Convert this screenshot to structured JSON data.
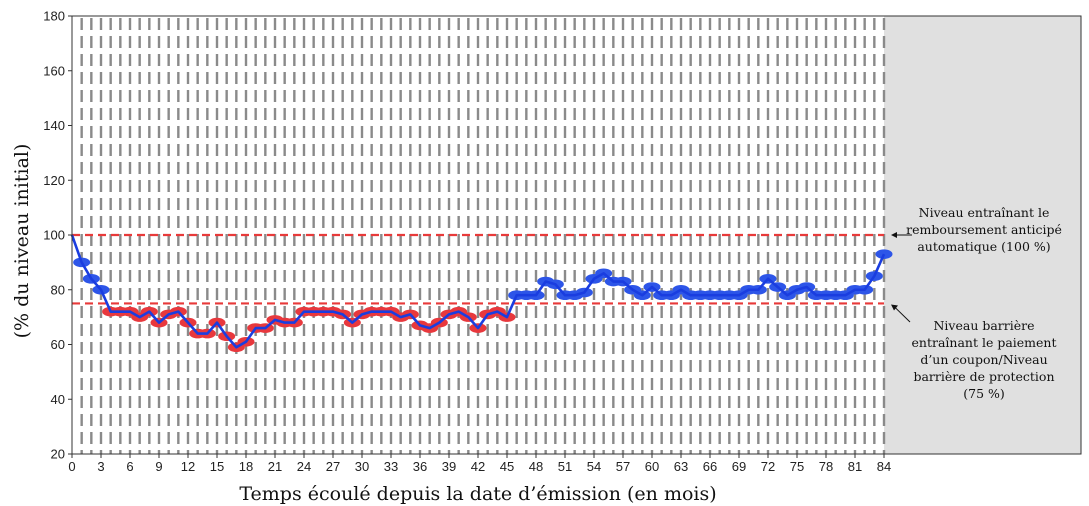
{
  "chart_data": {
    "type": "line",
    "xlabel": "Temps écoulé depuis la date d’émission (en mois)",
    "ylabel": "(% du niveau initial)",
    "xlim": [
      0,
      84
    ],
    "ylim": [
      20,
      180
    ],
    "x_ticks": [
      "0",
      "3",
      "6",
      "9",
      "12",
      "15",
      "18",
      "21",
      "24",
      "27",
      "30",
      "33",
      "36",
      "39",
      "42",
      "45",
      "48",
      "51",
      "54",
      "57",
      "60",
      "63",
      "66",
      "69",
      "72",
      "75",
      "78",
      "81",
      "84"
    ],
    "y_ticks": [
      "20",
      "40",
      "60",
      "80",
      "100",
      "120",
      "140",
      "160",
      "180"
    ],
    "grid": "vertical dashed at each month",
    "shaded_region": "after month 84",
    "reference_lines": [
      {
        "y": 100,
        "color": "#e83a3a",
        "style": "dashed"
      },
      {
        "y": 75,
        "color": "#e83a3a",
        "style": "dashed"
      }
    ],
    "series": [
      {
        "color": "#1a3de0",
        "x": [
          0,
          1,
          2,
          3,
          4,
          5,
          6,
          7,
          8,
          9,
          10,
          11,
          12,
          13,
          14,
          15,
          16,
          17,
          18,
          19,
          20,
          21,
          22,
          23,
          24,
          25,
          26,
          27,
          28,
          29,
          30,
          31,
          32,
          33,
          34,
          35,
          36,
          37,
          38,
          39,
          40,
          41,
          42,
          43,
          44,
          45,
          46,
          47,
          48,
          49,
          50,
          51,
          52,
          53,
          54,
          55,
          56,
          57,
          58,
          59,
          60,
          61,
          62,
          63,
          64,
          65,
          66,
          67,
          68,
          69,
          70,
          71,
          72,
          73,
          74,
          75,
          76,
          77,
          78,
          79,
          80,
          81,
          82,
          83,
          84
        ],
        "y": [
          100,
          90,
          84,
          80,
          72,
          72,
          72,
          70,
          72,
          68,
          71,
          72,
          68,
          64,
          64,
          68,
          63,
          59,
          61,
          66,
          66,
          69,
          68,
          68,
          72,
          72,
          72,
          72,
          71,
          68,
          71,
          72,
          72,
          72,
          70,
          71,
          67,
          66,
          68,
          71,
          72,
          70,
          66,
          71,
          72,
          70,
          78,
          78,
          78,
          83,
          82,
          78,
          78,
          79,
          84,
          86,
          83,
          83,
          80,
          78,
          81,
          78,
          78,
          80,
          78,
          78,
          78,
          78,
          78,
          78,
          80,
          80,
          84,
          81,
          78,
          80,
          81,
          78,
          78,
          78,
          78,
          80,
          80,
          85,
          93
        ]
      }
    ],
    "point_colors": {
      "below_barrier": "#e8383d",
      "above_barrier": "#2d55e8"
    },
    "annotations": [
      {
        "lines": [
          "Niveau entraînant le",
          "remboursement anticipé",
          "automatique (100 %)"
        ],
        "target_y": 100
      },
      {
        "lines": [
          "Niveau barrière",
          "entraînant le paiement",
          "d’un coupon/Niveau",
          "barrière de protection",
          "(75 %)"
        ],
        "target_y": 75
      }
    ]
  }
}
